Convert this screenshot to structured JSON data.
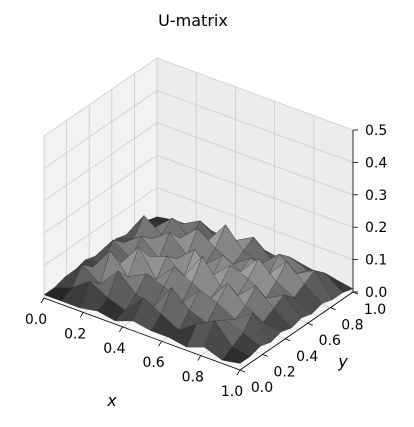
{
  "title": "U-matrix",
  "chart_data": {
    "type": "surface",
    "title": "U-matrix",
    "xlabel": "x",
    "ylabel": "y",
    "zlabel": "",
    "xlim": [
      0.0,
      1.0
    ],
    "ylim": [
      0.0,
      1.0
    ],
    "zlim": [
      0.0,
      0.5
    ],
    "x_ticks": [
      "0.0",
      "0.2",
      "0.4",
      "0.6",
      "0.8",
      "1.0"
    ],
    "y_ticks": [
      "0.0",
      "0.2",
      "0.4",
      "0.6",
      "0.8",
      "1.0"
    ],
    "z_ticks": [
      "0.0",
      "0.1",
      "0.2",
      "0.3",
      "0.4",
      "0.5"
    ],
    "grid": true,
    "colormap": "gray",
    "surface_color_low": "#111111",
    "surface_color_high": "#d8d8d8",
    "pane_color": "#f2f2f2",
    "grid_color": "#cccccc",
    "z_values": [
      [
        0.01,
        0.01,
        0.01,
        0.02,
        0.01,
        0.03,
        0.02,
        0.02,
        0.01,
        0.03,
        0.01,
        0.02
      ],
      [
        0.01,
        0.03,
        0.07,
        0.04,
        0.02,
        0.08,
        0.05,
        0.02,
        0.06,
        0.09,
        0.03,
        0.02
      ],
      [
        0.02,
        0.08,
        0.04,
        0.1,
        0.05,
        0.03,
        0.11,
        0.06,
        0.04,
        0.07,
        0.05,
        0.03
      ],
      [
        0.02,
        0.05,
        0.12,
        0.06,
        0.09,
        0.07,
        0.04,
        0.1,
        0.08,
        0.05,
        0.09,
        0.02
      ],
      [
        0.03,
        0.04,
        0.06,
        0.13,
        0.05,
        0.11,
        0.08,
        0.05,
        0.12,
        0.07,
        0.04,
        0.03
      ],
      [
        0.02,
        0.09,
        0.05,
        0.08,
        0.1,
        0.06,
        0.14,
        0.07,
        0.06,
        0.11,
        0.06,
        0.02
      ],
      [
        0.02,
        0.06,
        0.1,
        0.05,
        0.07,
        0.12,
        0.06,
        0.11,
        0.09,
        0.05,
        0.08,
        0.03
      ],
      [
        0.03,
        0.05,
        0.07,
        0.11,
        0.06,
        0.05,
        0.1,
        0.07,
        0.13,
        0.08,
        0.05,
        0.02
      ],
      [
        0.02,
        0.1,
        0.06,
        0.07,
        0.12,
        0.08,
        0.05,
        0.09,
        0.06,
        0.12,
        0.07,
        0.03
      ],
      [
        0.01,
        0.04,
        0.09,
        0.05,
        0.06,
        0.13,
        0.07,
        0.05,
        0.1,
        0.06,
        0.09,
        0.02
      ],
      [
        0.02,
        0.03,
        0.05,
        0.08,
        0.04,
        0.06,
        0.09,
        0.04,
        0.07,
        0.05,
        0.06,
        0.02
      ],
      [
        0.01,
        0.02,
        0.02,
        0.03,
        0.02,
        0.02,
        0.03,
        0.02,
        0.03,
        0.02,
        0.02,
        0.01
      ]
    ]
  }
}
